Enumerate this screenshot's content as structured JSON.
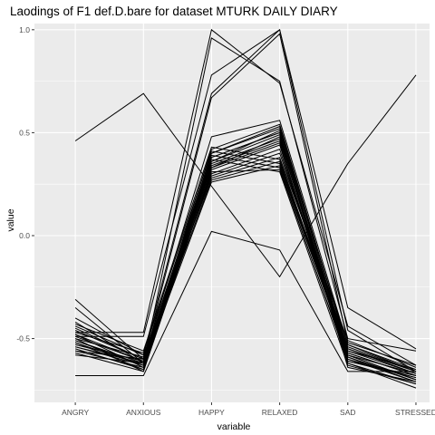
{
  "chart_data": {
    "type": "line",
    "title": "Laodings of F1 def.D.bare for dataset MTURK DAILY DIARY",
    "xlabel": "variable",
    "ylabel": "value",
    "categories": [
      "ANGRY",
      "ANXIOUS",
      "HAPPY",
      "RELAXED",
      "SAD",
      "STRESSED"
    ],
    "ylim": [
      -0.81,
      1.03
    ],
    "yticks": [
      -0.5,
      0.0,
      0.5,
      1.0
    ],
    "ytick_labels": [
      "-0.5",
      "0.0",
      "0.5",
      "1.0"
    ],
    "grid": true,
    "legend": "none",
    "series": [
      {
        "values": [
          0.46,
          0.69,
          0.24,
          -0.2,
          0.35,
          0.78
        ]
      },
      {
        "values": [
          -0.68,
          -0.68,
          0.02,
          -0.07,
          -0.66,
          -0.66
        ]
      },
      {
        "values": [
          -0.47,
          -0.47,
          1.0,
          0.74,
          -0.44,
          -0.63
        ]
      },
      {
        "values": [
          -0.49,
          -0.49,
          0.78,
          1.0,
          -0.46,
          -0.66
        ]
      },
      {
        "values": [
          -0.4,
          -0.58,
          0.69,
          1.0,
          -0.35,
          -0.55
        ]
      },
      {
        "values": [
          -0.31,
          -0.6,
          0.67,
          0.98,
          -0.52,
          -0.63
        ]
      },
      {
        "values": [
          -0.35,
          -0.62,
          0.96,
          0.75,
          -0.5,
          -0.56
        ]
      },
      {
        "values": [
          -0.45,
          -0.6,
          0.48,
          0.56,
          -0.53,
          -0.65
        ]
      },
      {
        "values": [
          -0.42,
          -0.62,
          0.42,
          0.54,
          -0.55,
          -0.66
        ]
      },
      {
        "values": [
          -0.48,
          -0.64,
          0.4,
          0.52,
          -0.57,
          -0.68
        ]
      },
      {
        "values": [
          -0.5,
          -0.66,
          0.38,
          0.5,
          -0.58,
          -0.7
        ]
      },
      {
        "values": [
          -0.52,
          -0.65,
          0.36,
          0.49,
          -0.59,
          -0.71
        ]
      },
      {
        "values": [
          -0.54,
          -0.63,
          0.35,
          0.47,
          -0.6,
          -0.69
        ]
      },
      {
        "values": [
          -0.53,
          -0.61,
          0.34,
          0.46,
          -0.56,
          -0.67
        ]
      },
      {
        "values": [
          -0.56,
          -0.64,
          0.33,
          0.45,
          -0.61,
          -0.68
        ]
      },
      {
        "values": [
          -0.57,
          -0.66,
          0.32,
          0.44,
          -0.62,
          -0.72
        ]
      },
      {
        "values": [
          -0.51,
          -0.62,
          0.3,
          0.42,
          -0.59,
          -0.7
        ]
      },
      {
        "values": [
          -0.46,
          -0.6,
          0.29,
          0.4,
          -0.54,
          -0.66
        ]
      },
      {
        "values": [
          -0.44,
          -0.58,
          0.28,
          0.38,
          -0.51,
          -0.64
        ]
      },
      {
        "values": [
          -0.49,
          -0.61,
          0.27,
          0.36,
          -0.57,
          -0.68
        ]
      },
      {
        "values": [
          -0.52,
          -0.63,
          0.26,
          0.34,
          -0.58,
          -0.7
        ]
      },
      {
        "values": [
          -0.55,
          -0.65,
          0.31,
          0.32,
          -0.6,
          -0.71
        ]
      },
      {
        "values": [
          -0.58,
          -0.62,
          0.37,
          0.31,
          -0.63,
          -0.72
        ]
      },
      {
        "values": [
          -0.5,
          -0.59,
          0.39,
          0.33,
          -0.61,
          -0.69
        ]
      },
      {
        "values": [
          -0.47,
          -0.57,
          0.41,
          0.35,
          -0.58,
          -0.67
        ]
      },
      {
        "values": [
          -0.43,
          -0.56,
          0.43,
          0.37,
          -0.56,
          -0.65
        ]
      },
      {
        "values": [
          -0.54,
          -0.62,
          0.33,
          0.48,
          -0.62,
          -0.74
        ]
      },
      {
        "values": [
          -0.56,
          -0.6,
          0.36,
          0.51,
          -0.64,
          -0.71
        ]
      },
      {
        "values": [
          -0.51,
          -0.63,
          0.4,
          0.53,
          -0.55,
          -0.67
        ]
      },
      {
        "values": [
          -0.48,
          -0.61,
          0.38,
          0.5,
          -0.53,
          -0.66
        ]
      }
    ]
  }
}
